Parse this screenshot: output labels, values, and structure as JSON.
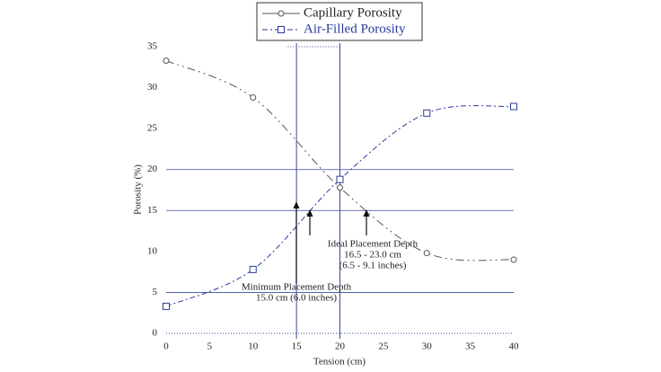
{
  "chart_data": {
    "type": "line",
    "x_label": "Tension (cm)",
    "y_label": "Porosity (%)",
    "x": [
      0,
      10,
      20,
      30,
      40
    ],
    "series": [
      {
        "name": "Capillary Porosity",
        "color": "#555555",
        "marker": "circle",
        "values": [
          33.3,
          28.8,
          17.8,
          9.8,
          9.0
        ]
      },
      {
        "name": "Air-Filled Porosity",
        "color": "#2a3a9a",
        "marker": "square",
        "values": [
          3.3,
          7.8,
          18.8,
          26.9,
          27.7
        ]
      }
    ],
    "xlim": [
      0,
      40
    ],
    "xticks": [
      0,
      5,
      10,
      15,
      20,
      25,
      30,
      35,
      40
    ],
    "ylim": [
      0,
      35
    ],
    "yticks": [
      0,
      5,
      10,
      15,
      20,
      25,
      30,
      35
    ],
    "grid_y": [
      5,
      15,
      20
    ],
    "vlines": [
      15,
      20
    ],
    "legend": "top",
    "annotations": [
      {
        "lines": [
          "Ideal Placement Depth",
          "16.5 - 23.0 cm",
          "(6.5 - 9.1 inches)"
        ]
      },
      {
        "lines": [
          "Minimum Placement Depth",
          "15.0 cm (6.0 inches)"
        ]
      }
    ]
  }
}
